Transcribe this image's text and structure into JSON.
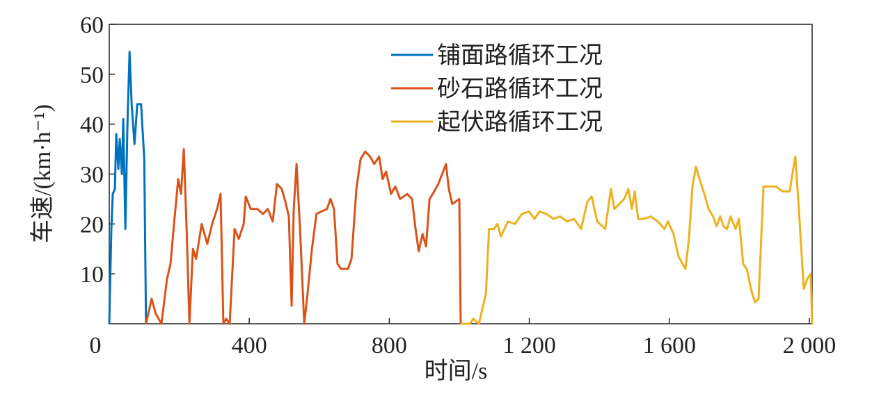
{
  "chart_data": {
    "type": "line",
    "xlabel": "时间/s",
    "ylabel": "车速/(km·h⁻¹)",
    "xlim": [
      0,
      2008
    ],
    "ylim": [
      0,
      60
    ],
    "xticks": [
      0,
      400,
      800,
      {
        "value": 1200,
        "label": "1 200"
      },
      {
        "value": 1600,
        "label": "1 600"
      },
      {
        "value": 2000,
        "label": "2 000"
      }
    ],
    "yticks": [
      10,
      20,
      30,
      40,
      50,
      60
    ],
    "legend": "upper center",
    "series": [
      {
        "name": "铺面路循环工况",
        "color": "#0072BD",
        "x": [
          0,
          6,
          10,
          16,
          20,
          26,
          30,
          36,
          40,
          46,
          52,
          58,
          64,
          72,
          80,
          91,
          100,
          105
        ],
        "values": [
          0,
          19,
          26,
          27,
          38,
          31,
          37,
          30,
          41,
          19,
          40,
          54.5,
          44,
          36,
          44,
          44,
          33,
          0
        ]
      },
      {
        "name": "砂石路循环工况",
        "color": "#D95319",
        "x": [
          105,
          121,
          133,
          149,
          165,
          175,
          185,
          197,
          205,
          213,
          221,
          229,
          239,
          248,
          264,
          280,
          294,
          308,
          318,
          326,
          334,
          344,
          358,
          370,
          384,
          390,
          404,
          423,
          439,
          453,
          467,
          479,
          493,
          503,
          513,
          521,
          527,
          535,
          545,
          557,
          565,
          579,
          592,
          606,
          622,
          632,
          642,
          652,
          662,
          682,
          692,
          706,
          718,
          731,
          745,
          757,
          771,
          781,
          791,
          805,
          817,
          831,
          851,
          865,
          875,
          884,
          895,
          905,
          915,
          924,
          940,
          962,
          970,
          980,
          1000,
          1004
        ],
        "values": [
          0,
          5,
          2,
          0,
          9,
          12,
          20,
          29,
          26,
          35,
          19,
          0,
          15,
          13,
          20,
          16,
          20,
          23,
          26,
          0,
          1,
          0,
          19,
          17,
          20,
          25.5,
          23,
          23,
          22,
          23,
          20.5,
          28,
          27,
          24.5,
          21.5,
          3.6,
          23,
          32,
          19,
          0,
          5,
          15,
          22,
          22.5,
          23,
          25,
          23,
          12,
          11,
          11,
          13,
          27,
          33,
          34.5,
          33.5,
          32,
          33.5,
          29,
          30.5,
          26,
          27.5,
          25,
          26,
          25,
          19,
          14.5,
          18,
          15.5,
          25,
          26,
          28,
          32,
          27,
          24,
          25,
          0
        ]
      },
      {
        "name": "起伏路循环工况",
        "color": "#EDB120",
        "x": [
          1004,
          1030,
          1040,
          1056,
          1076,
          1085,
          1099,
          1109,
          1119,
          1139,
          1159,
          1179,
          1199,
          1215,
          1229,
          1249,
          1269,
          1288,
          1308,
          1328,
          1348,
          1366,
          1378,
          1394,
          1417,
          1433,
          1443,
          1457,
          1471,
          1483,
          1493,
          1501,
          1511,
          1527,
          1547,
          1567,
          1586,
          1596,
          1612,
          1626,
          1646,
          1656,
          1666,
          1676,
          1686,
          1700,
          1712,
          1725,
          1735,
          1745,
          1755,
          1765,
          1775,
          1789,
          1799,
          1811,
          1821,
          1835,
          1845,
          1855,
          1869,
          1885,
          1905,
          1924,
          1944,
          1954,
          1960,
          1970,
          1984,
          1994,
          2004,
          2008
        ],
        "values": [
          0,
          0,
          1,
          0,
          6,
          19,
          19,
          20,
          17.5,
          20.5,
          20,
          22,
          22.5,
          21,
          22.5,
          22,
          21,
          21.5,
          20.5,
          21,
          19,
          24.5,
          25.5,
          20.5,
          19,
          27,
          23,
          24,
          25,
          27,
          23,
          26.5,
          21,
          21,
          21.5,
          20.5,
          19,
          20.5,
          18,
          13.5,
          11,
          17,
          27.5,
          31.5,
          29,
          26,
          23,
          21.5,
          19.5,
          21.5,
          19.5,
          19,
          21.5,
          19,
          21,
          12,
          11,
          6.5,
          4.3,
          5,
          27.5,
          27.5,
          27.5,
          26.5,
          26.5,
          31,
          33.5,
          23,
          7,
          9,
          10,
          0
        ]
      }
    ]
  }
}
